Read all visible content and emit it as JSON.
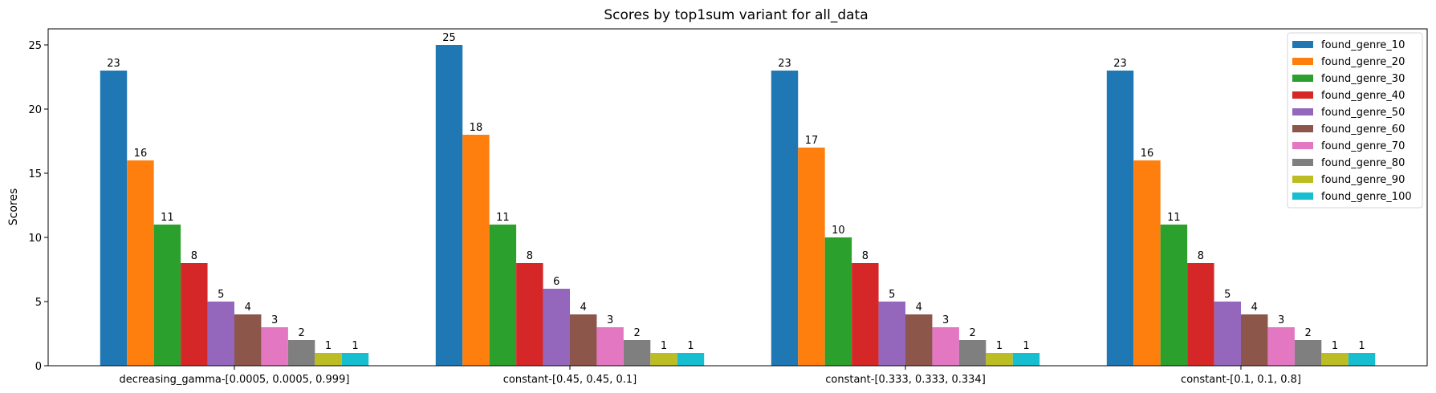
{
  "chart_data": {
    "type": "bar",
    "title": "Scores by top1sum variant for all_data",
    "xlabel": "",
    "ylabel": "Scores",
    "ylim": [
      0,
      26.25
    ],
    "yticks": [
      0,
      5,
      10,
      15,
      20,
      25
    ],
    "grid": false,
    "legend_position": "top-right",
    "categories": [
      "decreasing_gamma-[0.0005, 0.0005, 0.999]",
      "constant-[0.45, 0.45, 0.1]",
      "constant-[0.333, 0.333, 0.334]",
      "constant-[0.1, 0.1, 0.8]"
    ],
    "series": [
      {
        "name": "found_genre_10",
        "color": "#1f77b4",
        "values": [
          23,
          25,
          23,
          23
        ]
      },
      {
        "name": "found_genre_20",
        "color": "#ff7f0e",
        "values": [
          16,
          18,
          17,
          16
        ]
      },
      {
        "name": "found_genre_30",
        "color": "#2ca02c",
        "values": [
          11,
          11,
          10,
          11
        ]
      },
      {
        "name": "found_genre_40",
        "color": "#d62728",
        "values": [
          8,
          8,
          8,
          8
        ]
      },
      {
        "name": "found_genre_50",
        "color": "#9467bd",
        "values": [
          5,
          6,
          5,
          5
        ]
      },
      {
        "name": "found_genre_60",
        "color": "#8c564b",
        "values": [
          4,
          4,
          4,
          4
        ]
      },
      {
        "name": "found_genre_70",
        "color": "#e377c2",
        "values": [
          3,
          3,
          3,
          3
        ]
      },
      {
        "name": "found_genre_80",
        "color": "#7f7f7f",
        "values": [
          2,
          2,
          2,
          2
        ]
      },
      {
        "name": "found_genre_90",
        "color": "#bcbd22",
        "values": [
          1,
          1,
          1,
          1
        ]
      },
      {
        "name": "found_genre_100",
        "color": "#17becf",
        "values": [
          1,
          1,
          1,
          1
        ]
      }
    ]
  }
}
